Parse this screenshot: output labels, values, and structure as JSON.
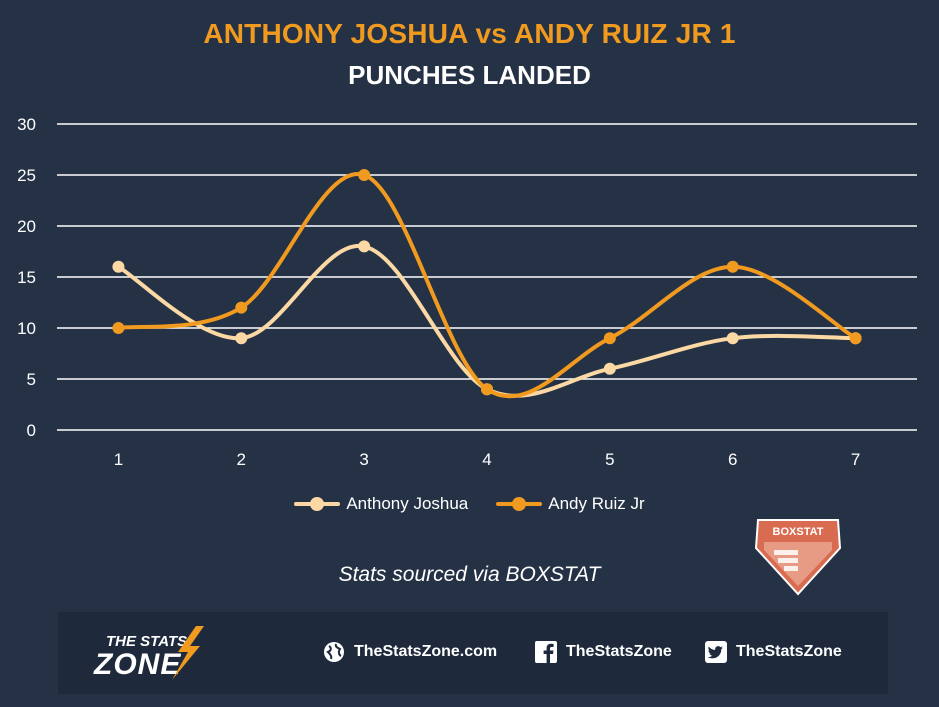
{
  "header": {
    "title": "ANTHONY JOSHUA vs ANDY RUIZ JR 1",
    "subtitle": "PUNCHES LANDED"
  },
  "colors": {
    "background": "#253246",
    "title": "#f09a1f",
    "joshua": "#fbd8a4",
    "ruiz": "#f09a1f",
    "grid": "#ffffff",
    "footer_band": "#1e2a3b",
    "boxstat": "#d86b50"
  },
  "chart_data": {
    "type": "line",
    "title": "PUNCHES LANDED",
    "xlabel": "",
    "ylabel": "",
    "categories": [
      "1",
      "2",
      "3",
      "4",
      "5",
      "6",
      "7"
    ],
    "series": [
      {
        "name": "Anthony Joshua",
        "values": [
          16,
          9,
          18,
          4,
          6,
          9,
          9
        ]
      },
      {
        "name": "Andy Ruiz Jr",
        "values": [
          10,
          12,
          25,
          4,
          9,
          16,
          9
        ]
      }
    ],
    "ylim": [
      0,
      30
    ],
    "yticks": [
      "0",
      "5",
      "10",
      "15",
      "20",
      "25",
      "30"
    ],
    "grid": true,
    "smooth": true,
    "legend_position": "bottom"
  },
  "legend": {
    "items": [
      {
        "label": "Anthony Joshua"
      },
      {
        "label": "Andy Ruiz Jr"
      }
    ]
  },
  "source_note": "Stats sourced via BOXSTAT",
  "boxstat_logo": {
    "text": "BOXSTAT",
    "icon": "boxstat-shield-icon"
  },
  "footer": {
    "logo_top": "THE STATS",
    "logo_bottom": "ZONE",
    "links": [
      {
        "icon": "globe-icon",
        "label": "TheStatsZone.com"
      },
      {
        "icon": "facebook-icon",
        "label": "TheStatsZone"
      },
      {
        "icon": "twitter-icon",
        "label": "TheStatsZone"
      }
    ]
  }
}
